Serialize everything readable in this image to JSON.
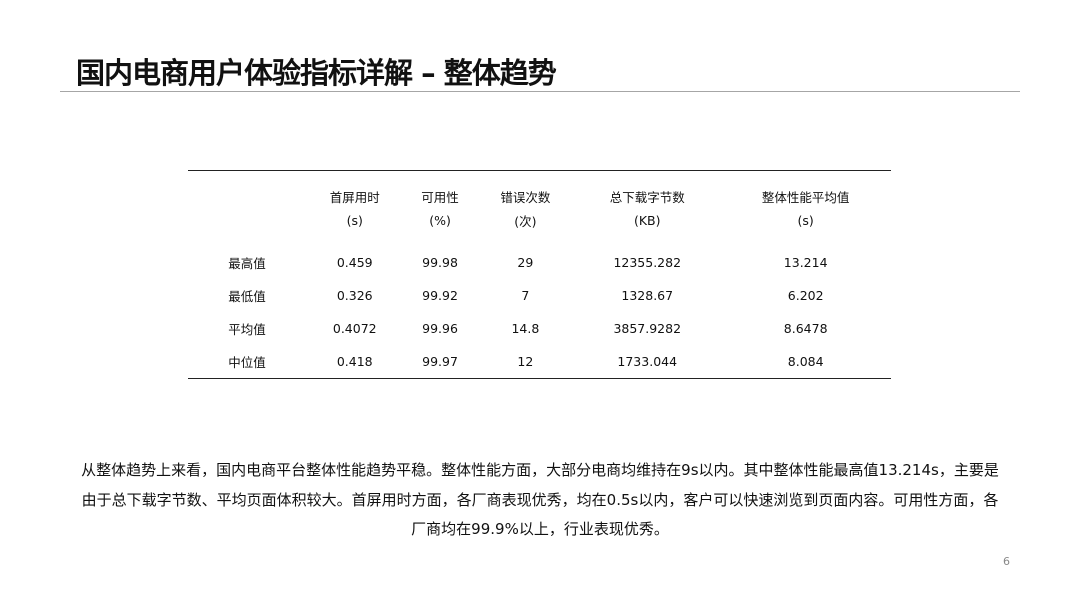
{
  "title": "国内电商用户体验指标详解 – 整体趋势",
  "table": {
    "headers": [
      {
        "name": "",
        "unit": ""
      },
      {
        "name": "首屏用时",
        "unit": "(s)"
      },
      {
        "name": "可用性",
        "unit": "(%)"
      },
      {
        "name": "错误次数",
        "unit": "(次)"
      },
      {
        "name": "总下载字节数",
        "unit": "(KB)"
      },
      {
        "name": "整体性能平均值",
        "unit": "(s)"
      }
    ],
    "rows": [
      [
        "最高值",
        "0.459",
        "99.98",
        "29",
        "12355.282",
        "13.214"
      ],
      [
        "最低值",
        "0.326",
        "99.92",
        "7",
        "1328.67",
        "6.202"
      ],
      [
        "平均值",
        "0.4072",
        "99.96",
        "14.8",
        "3857.9282",
        "8.6478"
      ],
      [
        "中位值",
        "0.418",
        "99.97",
        "12",
        "1733.044",
        "8.084"
      ]
    ]
  },
  "summary": {
    "line1": "从整体趋势上来看，国内电商平台整体性能趋势平稳。整体性能方面，大部分电商均维持在9s以内。其中整体性能最高值13.214s，主要是",
    "line2": "由于总下载字节数、平均页面体积较大。首屏用时方面，各厂商表现优秀，均在0.5s以内，客户可以快速浏览到页面内容。可用性方面，各",
    "line3": "厂商均在99.9%以上，行业表现优秀。"
  },
  "page_number": "6"
}
